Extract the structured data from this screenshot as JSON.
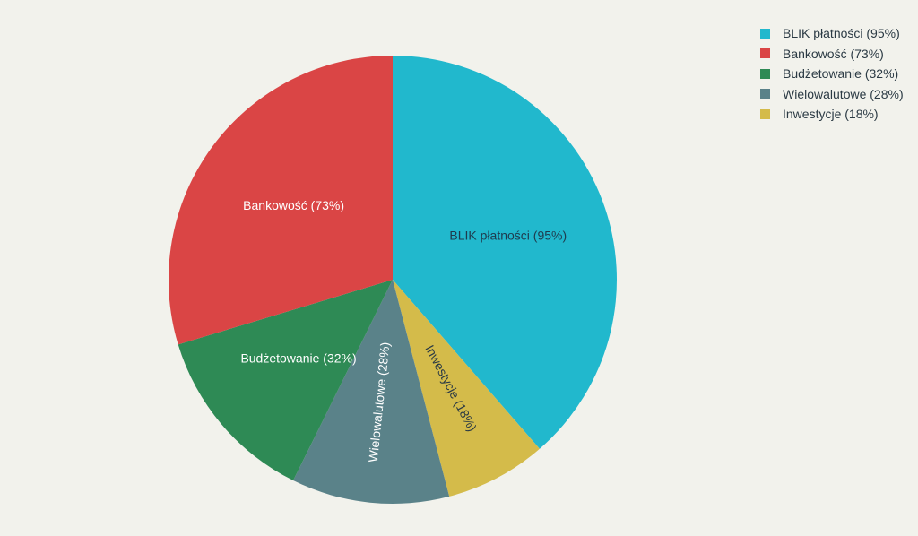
{
  "chart_data": {
    "type": "pie",
    "title": "",
    "categories": [
      "BLIK płatności",
      "Bankowość",
      "Budżetowanie",
      "Wielowalutowe",
      "Inwestycje"
    ],
    "values": [
      95,
      73,
      32,
      28,
      18
    ],
    "labels": [
      "BLIK płatności (95%)",
      "Bankowość (73%)",
      "Budżetowanie (32%)",
      "Wielowalutowe (28%)",
      "Inwestycje (18%)"
    ],
    "colors": [
      "#21b8cd",
      "#da4545",
      "#2e8a55",
      "#5a8289",
      "#d4bb4a"
    ],
    "label_colors": [
      "#1f3b4d",
      "#ffffff",
      "#ffffff",
      "#ffffff",
      "#2b3a44"
    ],
    "start_angle_deg": 0,
    "direction": "clockwise",
    "slice_order_clockwise": [
      0,
      4,
      3,
      2,
      1
    ],
    "legend_position": "top-right"
  },
  "legend": {
    "items": [
      {
        "label": "BLIK płatności (95%)",
        "color": "#21b8cd"
      },
      {
        "label": "Bankowość (73%)",
        "color": "#da4545"
      },
      {
        "label": "Budżetowanie (32%)",
        "color": "#2e8a55"
      },
      {
        "label": "Wielowalutowe (28%)",
        "color": "#5a8289"
      },
      {
        "label": "Inwestycje (18%)",
        "color": "#d4bb4a"
      }
    ]
  }
}
